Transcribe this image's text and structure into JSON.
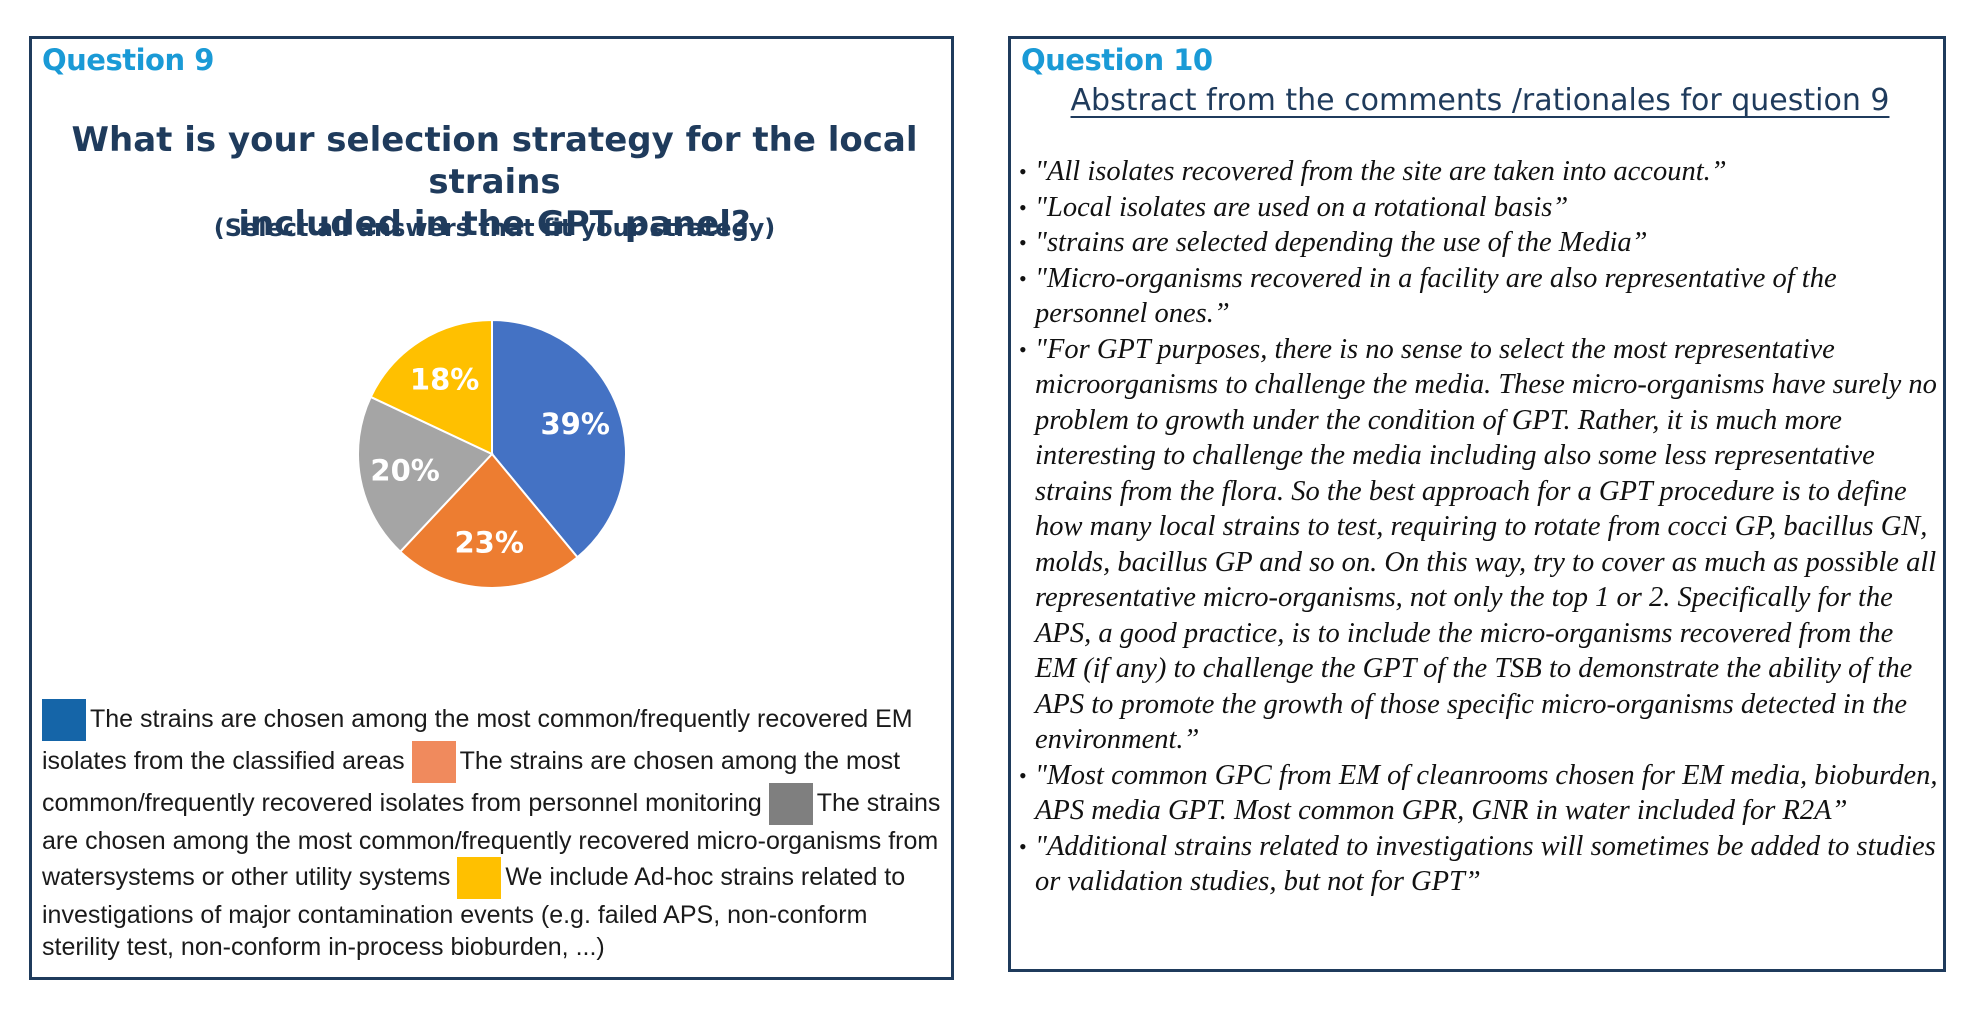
{
  "left": {
    "question_label": "Question 9",
    "title_line1": "What is your selection strategy for the local strains",
    "title_line2": "included in the GPT panel?",
    "subtitle": "(Select all answers that fit your strategy)"
  },
  "chart_data": {
    "type": "pie",
    "values": [
      39,
      23,
      20,
      18
    ],
    "labels": [
      "39%",
      "23%",
      "20%",
      "18%"
    ],
    "colors": [
      "#4472c4",
      "#ed7d31",
      "#a5a5a5",
      "#ffc000"
    ],
    "start_angle_deg": 0,
    "direction": "clockwise"
  },
  "legend": [
    {
      "color": "#1565a8",
      "text": "The strains are chosen among the most common/frequently recovered EM isolates from the classified areas"
    },
    {
      "color": "#f08a5d",
      "text": "The strains are chosen among the most common/frequently recovered isolates from personnel monitoring"
    },
    {
      "color": "#7f7f7f",
      "text": "The strains are chosen among the most common/frequently recovered micro-organisms from watersystems or other utility systems"
    },
    {
      "color": "#ffc000",
      "text": "We include Ad-hoc strains related to investigations of major contamination events (e.g. failed APS, non-conform sterility test, non-conform in-process bioburden, ...)"
    }
  ],
  "right": {
    "question_label": "Question 10",
    "abstract_title": "Abstract from the comments /rationales for question 9",
    "comments": [
      "\"All isolates recovered from the site are taken into account.”",
      "\"Local isolates are used on a rotational basis”",
      "\"strains are selected depending the use of the Media”",
      "\"Micro-organisms recovered in a facility are also representative of the personnel ones.”",
      "\"For GPT purposes, there is no sense to select the most representative microorganisms to challenge the media. These micro-organisms have surely no problem to growth under the condition of GPT. Rather, it is much more interesting to challenge the media including also some less representative strains from the flora. So the best approach for a GPT procedure is to define how many local strains to test, requiring to rotate from cocci GP, bacillus GN, molds, bacillus GP and so on. On this way, try to cover as much as possible all representative micro-organisms, not only the top 1 or 2. Specifically for the APS, a good practice, is to include the micro-organisms recovered from the EM (if any) to challenge the GPT of the TSB to demonstrate the ability of the APS to promote the growth of those specific micro-organisms detected in the environment.”",
      "\"Most common GPC from EM of cleanrooms chosen for EM media, bioburden, APS media GPT. Most common GPR, GNR in water included for R2A”",
      "\"Additional strains related to investigations will sometimes be added to studies or validation studies, but not for GPT”"
    ]
  }
}
